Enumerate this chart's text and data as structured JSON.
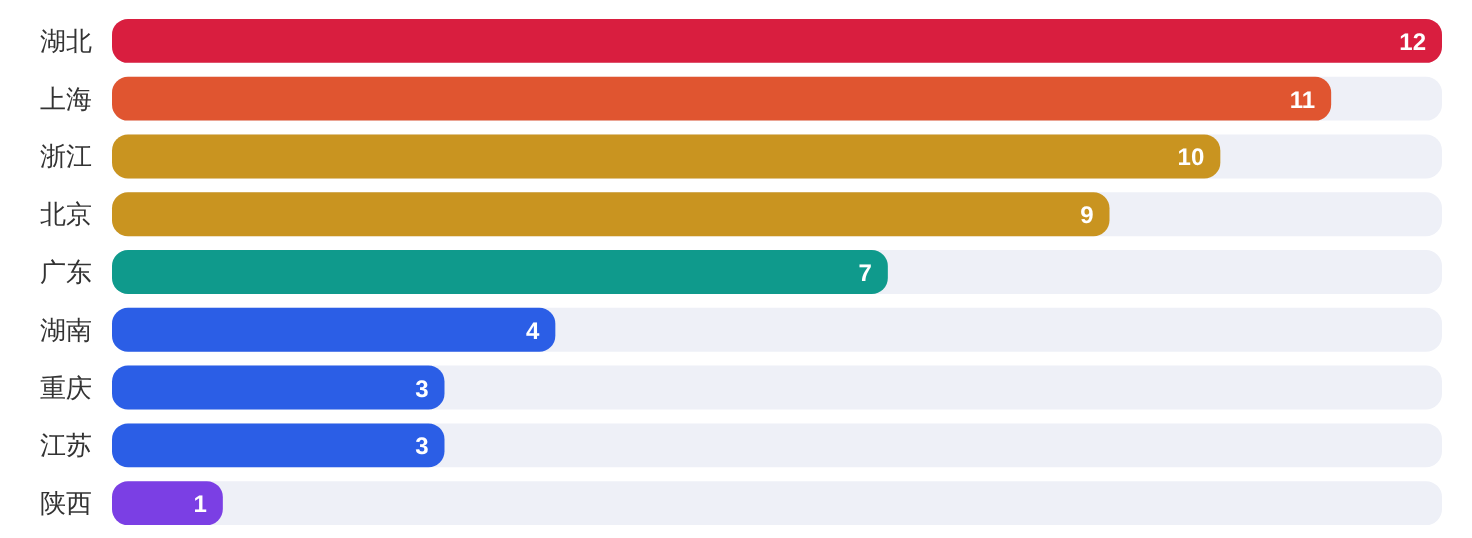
{
  "chart_data": {
    "type": "bar",
    "orientation": "horizontal",
    "categories": [
      "湖北",
      "上海",
      "浙江",
      "北京",
      "广东",
      "湖南",
      "重庆",
      "江苏",
      "陕西"
    ],
    "values": [
      12,
      11,
      10,
      9,
      7,
      4,
      3,
      3,
      1
    ],
    "colors": [
      "#d91e3f",
      "#e05530",
      "#c99420",
      "#c99420",
      "#0f9a8c",
      "#2b5ee6",
      "#2b5ee6",
      "#2b5ee6",
      "#7b3fe4"
    ],
    "xlim": [
      0,
      12
    ],
    "tick_labels": "y",
    "data_labels": true
  }
}
